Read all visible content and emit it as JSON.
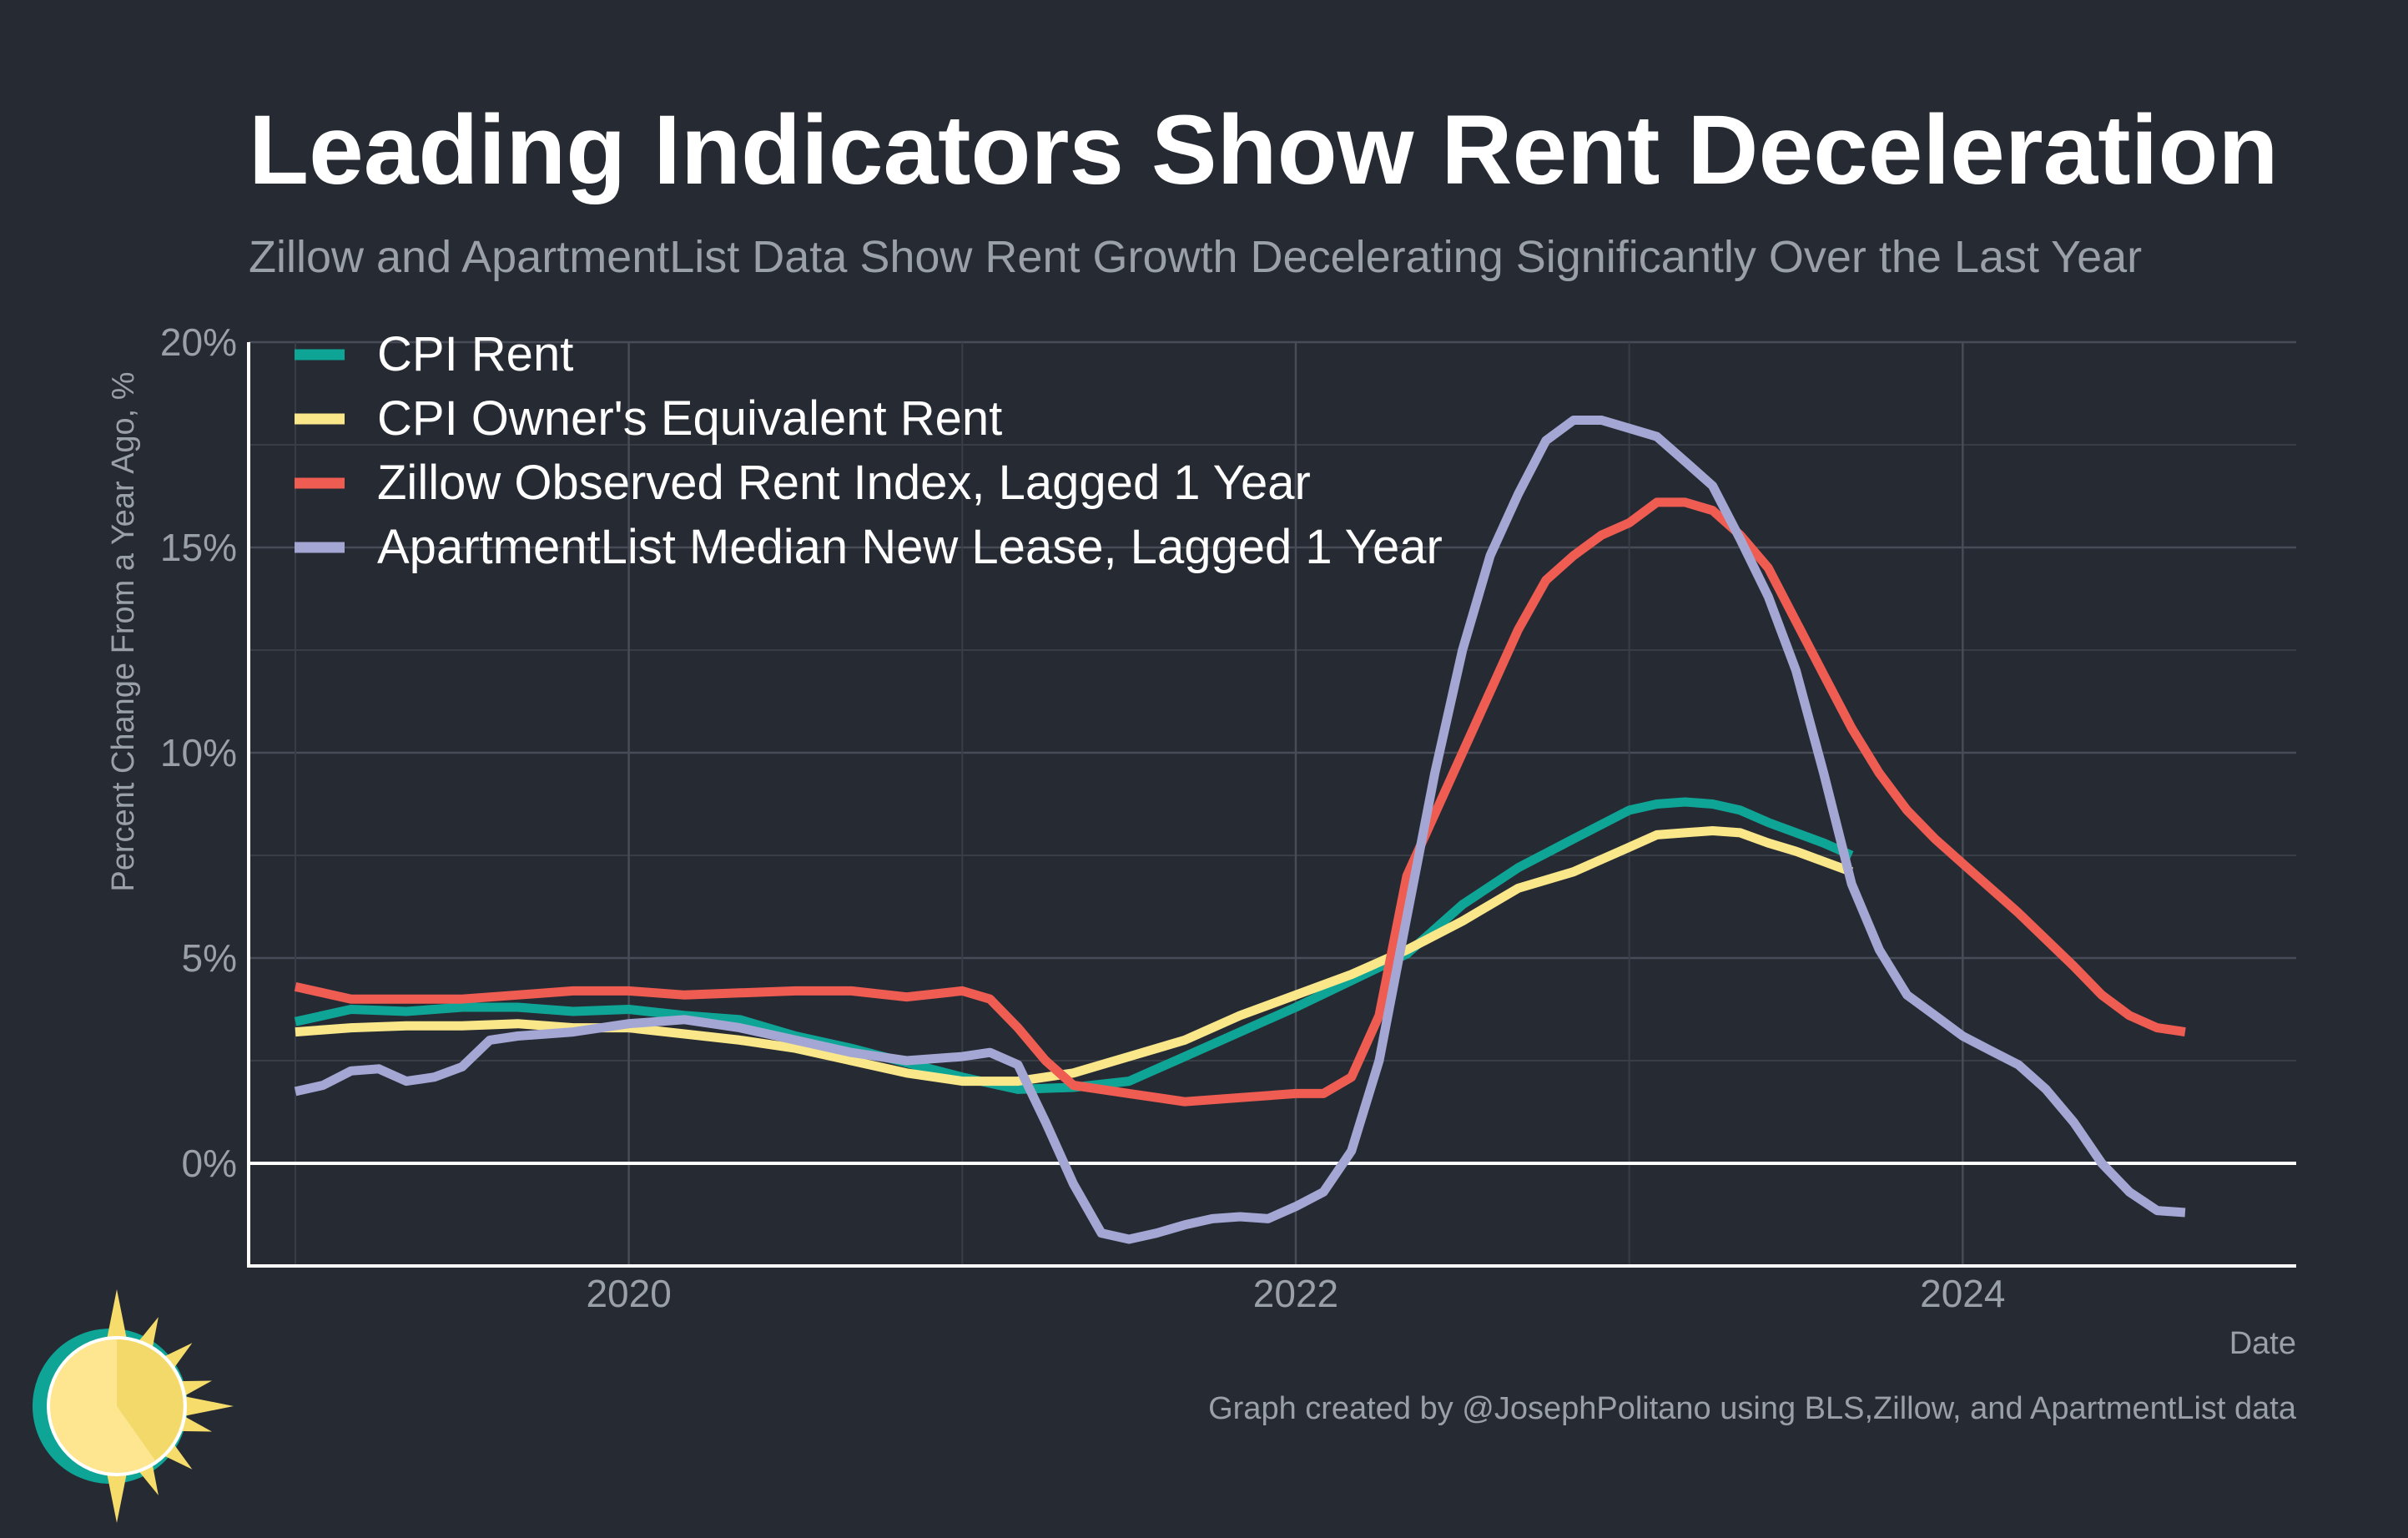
{
  "chart_data": {
    "type": "line",
    "title": "Leading Indicators Show Rent Deceleration",
    "subtitle": "Zillow and ApartmentList Data Show Rent Growth Decelerating Significantly Over the Last Year",
    "xlabel": "Date",
    "ylabel": "Percent Change From a Year Ago, %",
    "xlim": [
      2018.86,
      2025.0
    ],
    "ylim": [
      -2.5,
      20
    ],
    "x_ticks": [
      2020,
      2022,
      2024
    ],
    "x_tick_labels": [
      "2020",
      "2022",
      "2024"
    ],
    "y_ticks": [
      0,
      5,
      10,
      15,
      20
    ],
    "y_tick_labels": [
      "0%",
      "5%",
      "10%",
      "15%",
      "20%"
    ],
    "grid": true,
    "legend_position": "top-left",
    "caption": "Graph created by @JosephPolitano using BLS,Zillow, and ApartmentList data",
    "series": [
      {
        "name": "CPI Rent",
        "color": "#0fa596",
        "x": [
          2019.0,
          2019.167,
          2019.333,
          2019.5,
          2019.667,
          2019.833,
          2020.0,
          2020.167,
          2020.333,
          2020.5,
          2020.667,
          2020.833,
          2021.0,
          2021.167,
          2021.333,
          2021.5,
          2021.667,
          2021.833,
          2022.0,
          2022.167,
          2022.333,
          2022.5,
          2022.667,
          2022.833,
          2023.0,
          2023.083,
          2023.167,
          2023.25,
          2023.333,
          2023.417,
          2023.5,
          2023.583,
          2023.667
        ],
        "y": [
          3.45,
          3.75,
          3.7,
          3.8,
          3.8,
          3.7,
          3.75,
          3.6,
          3.5,
          3.1,
          2.8,
          2.45,
          2.1,
          1.8,
          1.85,
          2.0,
          2.6,
          3.2,
          3.8,
          4.45,
          5.1,
          6.3,
          7.2,
          7.9,
          8.6,
          8.75,
          8.8,
          8.75,
          8.6,
          8.3,
          8.05,
          7.8,
          7.5
        ]
      },
      {
        "name": "CPI Owner's Equivalent Rent",
        "color": "#fae78a",
        "x": [
          2019.0,
          2019.167,
          2019.333,
          2019.5,
          2019.667,
          2019.833,
          2020.0,
          2020.167,
          2020.333,
          2020.5,
          2020.667,
          2020.833,
          2021.0,
          2021.167,
          2021.333,
          2021.5,
          2021.667,
          2021.833,
          2022.0,
          2022.167,
          2022.333,
          2022.5,
          2022.667,
          2022.833,
          2023.0,
          2023.083,
          2023.167,
          2023.25,
          2023.333,
          2023.417,
          2023.5,
          2023.583,
          2023.667
        ],
        "y": [
          3.2,
          3.3,
          3.35,
          3.35,
          3.4,
          3.3,
          3.3,
          3.15,
          3.0,
          2.8,
          2.5,
          2.2,
          2.0,
          2.0,
          2.2,
          2.6,
          3.0,
          3.6,
          4.1,
          4.6,
          5.2,
          5.9,
          6.7,
          7.1,
          7.7,
          8.0,
          8.05,
          8.1,
          8.05,
          7.8,
          7.6,
          7.35,
          7.1
        ]
      },
      {
        "name": "Zillow Observed Rent Index, Lagged 1 Year",
        "color": "#ee5c52",
        "x": [
          2019.0,
          2019.167,
          2019.333,
          2019.5,
          2019.667,
          2019.833,
          2020.0,
          2020.167,
          2020.333,
          2020.5,
          2020.667,
          2020.833,
          2021.0,
          2021.083,
          2021.167,
          2021.25,
          2021.333,
          2021.5,
          2021.667,
          2021.833,
          2022.0,
          2022.083,
          2022.167,
          2022.25,
          2022.333,
          2022.5,
          2022.667,
          2022.75,
          2022.833,
          2022.917,
          2023.0,
          2023.083,
          2023.167,
          2023.25,
          2023.333,
          2023.417,
          2023.5,
          2023.583,
          2023.667,
          2023.75,
          2023.833,
          2023.917,
          2024.0,
          2024.167,
          2024.333,
          2024.417,
          2024.5,
          2024.583,
          2024.667
        ],
        "y": [
          4.3,
          4.0,
          4.0,
          4.0,
          4.1,
          4.2,
          4.2,
          4.1,
          4.15,
          4.2,
          4.2,
          4.05,
          4.2,
          4.0,
          3.3,
          2.5,
          1.9,
          1.7,
          1.5,
          1.6,
          1.7,
          1.7,
          2.1,
          3.6,
          7.0,
          10.0,
          13.0,
          14.2,
          14.8,
          15.3,
          15.6,
          16.1,
          16.1,
          15.9,
          15.3,
          14.5,
          13.2,
          11.9,
          10.6,
          9.5,
          8.6,
          7.9,
          7.3,
          6.1,
          4.8,
          4.1,
          3.6,
          3.3,
          3.2
        ]
      },
      {
        "name": "ApartmentList Median New Lease, Lagged 1 Year",
        "color": "#a4a7d4",
        "x": [
          2019.0,
          2019.083,
          2019.167,
          2019.25,
          2019.333,
          2019.417,
          2019.5,
          2019.583,
          2019.667,
          2019.833,
          2020.0,
          2020.167,
          2020.333,
          2020.5,
          2020.667,
          2020.833,
          2021.0,
          2021.083,
          2021.167,
          2021.25,
          2021.333,
          2021.417,
          2021.5,
          2021.583,
          2021.667,
          2021.75,
          2021.833,
          2021.917,
          2022.0,
          2022.083,
          2022.167,
          2022.25,
          2022.333,
          2022.417,
          2022.5,
          2022.583,
          2022.667,
          2022.75,
          2022.833,
          2022.917,
          2023.0,
          2023.083,
          2023.167,
          2023.25,
          2023.333,
          2023.417,
          2023.5,
          2023.583,
          2023.667,
          2023.75,
          2023.833,
          2023.917,
          2024.0,
          2024.083,
          2024.167,
          2024.25,
          2024.333,
          2024.417,
          2024.5,
          2024.583,
          2024.667
        ],
        "y": [
          1.75,
          1.9,
          2.25,
          2.3,
          2.0,
          2.1,
          2.35,
          3.0,
          3.1,
          3.2,
          3.4,
          3.5,
          3.3,
          3.0,
          2.7,
          2.5,
          2.6,
          2.7,
          2.4,
          1.0,
          -0.5,
          -1.7,
          -1.85,
          -1.7,
          -1.5,
          -1.35,
          -1.3,
          -1.35,
          -1.05,
          -0.7,
          0.3,
          2.5,
          6.0,
          9.5,
          12.5,
          14.8,
          16.3,
          17.6,
          18.1,
          18.1,
          17.9,
          17.7,
          17.1,
          16.5,
          15.2,
          13.8,
          12.0,
          9.5,
          6.8,
          5.2,
          4.1,
          3.6,
          3.1,
          2.75,
          2.4,
          1.8,
          1.0,
          0.0,
          -0.7,
          -1.15,
          -1.2
        ]
      }
    ]
  }
}
